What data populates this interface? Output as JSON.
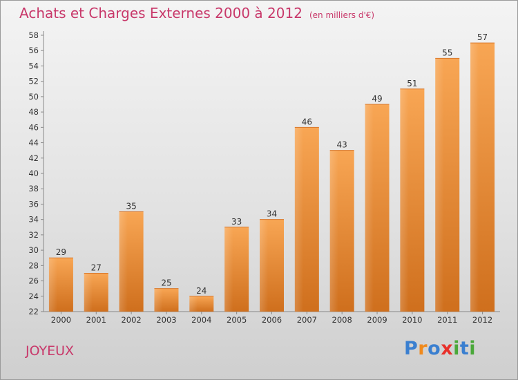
{
  "chart_data": {
    "type": "bar",
    "title": "Achats et Charges Externes 2000 à 2012",
    "unit": "(en milliers d'€)",
    "categories": [
      "2000",
      "2001",
      "2002",
      "2003",
      "2004",
      "2005",
      "2006",
      "2007",
      "2008",
      "2009",
      "2010",
      "2011",
      "2012"
    ],
    "values": [
      29,
      27,
      35,
      25,
      24,
      33,
      34,
      46,
      43,
      49,
      51,
      55,
      57
    ],
    "ylim": [
      22,
      58
    ],
    "yticks": [
      22,
      24,
      26,
      28,
      30,
      32,
      34,
      36,
      38,
      40,
      42,
      44,
      46,
      48,
      50,
      52,
      54,
      56,
      58
    ],
    "grid": false,
    "bar_color": "#f2923c"
  },
  "commune": "JOYEUX",
  "logo": {
    "text": "Proxiti",
    "letters": [
      {
        "char": "P",
        "color": "#3a7fd0"
      },
      {
        "char": "r",
        "color": "#f08a1c"
      },
      {
        "char": "o",
        "color": "#3a7fd0"
      },
      {
        "char": "x",
        "color": "#e8302a"
      },
      {
        "char": "i",
        "color": "#4aa83a"
      },
      {
        "char": "t",
        "color": "#3a7fd0"
      },
      {
        "char": "i",
        "color": "#4aa83a"
      }
    ]
  }
}
